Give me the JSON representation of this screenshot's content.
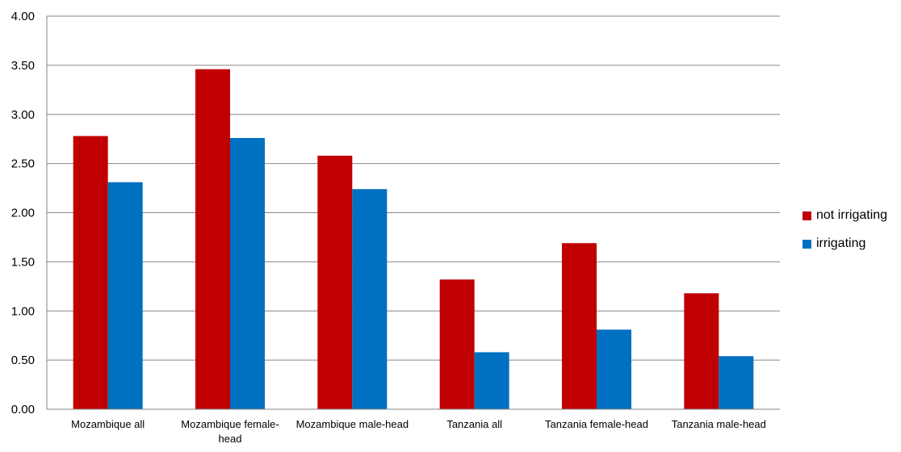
{
  "chart_data": {
    "type": "bar",
    "categories": [
      [
        "Mozambique all"
      ],
      [
        "Mozambique female-",
        "head"
      ],
      [
        "Mozambique male-head"
      ],
      [
        "Tanzania all"
      ],
      [
        "Tanzania female-head"
      ],
      [
        "Tanzania male-head"
      ]
    ],
    "series": [
      {
        "name": "not irrigating",
        "color": "#C00000",
        "values": [
          2.78,
          3.46,
          2.58,
          1.32,
          1.69,
          1.18
        ]
      },
      {
        "name": "irrigating",
        "color": "#0070C0",
        "values": [
          2.31,
          2.76,
          2.24,
          0.58,
          0.81,
          0.54
        ]
      }
    ],
    "ylim": [
      0,
      4
    ],
    "yticks": [
      "0.00",
      "0.50",
      "1.00",
      "1.50",
      "2.00",
      "2.50",
      "3.00",
      "3.50",
      "4.00"
    ],
    "grid": true,
    "legend_position": "right",
    "title": "",
    "xlabel": "",
    "ylabel": ""
  }
}
